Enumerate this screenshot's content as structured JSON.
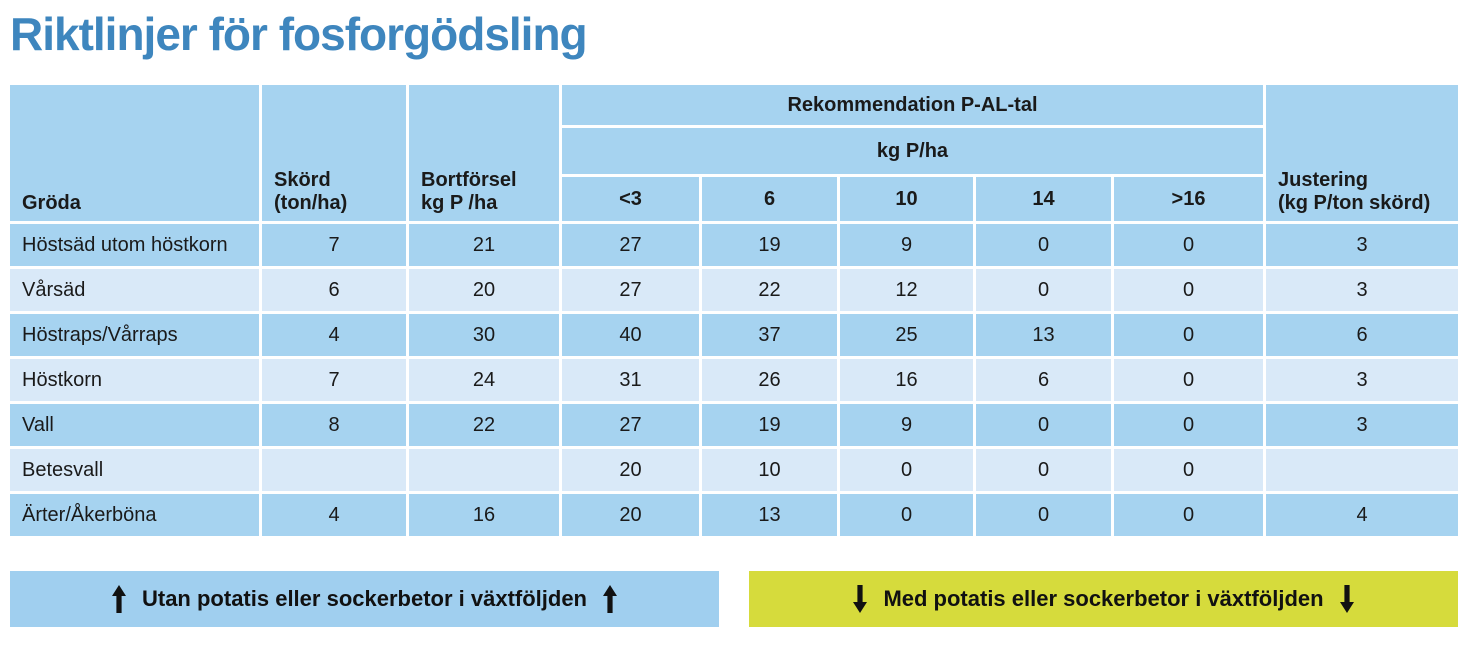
{
  "page": {
    "title": "Riktlinjer för fosforgödsling"
  },
  "colors": {
    "title_blue": "#3e86be",
    "row_dark_blue": "#a6d3f0",
    "row_light_blue": "#d9e9f8",
    "banner_blue": "#a0cfef",
    "banner_yellow": "#d6db3c",
    "text": "#1a1a1a"
  },
  "table": {
    "header": {
      "crop": "Gröda",
      "yield_line1": "Skörd",
      "yield_line2": "(ton/ha)",
      "removal_line1": "Bortförsel",
      "removal_line2": "kg P /ha",
      "group_title": "Rekommendation P-AL-tal",
      "group_subtitle": "kg P/ha",
      "pal_levels": [
        "<3",
        "6",
        "10",
        "14",
        ">16"
      ],
      "adjustment_line1": "Justering",
      "adjustment_line2": "(kg P/ton skörd)"
    },
    "rows": [
      {
        "crop": "Höstsäd utom höstkorn",
        "yield": "7",
        "removal": "21",
        "pal": [
          "27",
          "19",
          "9",
          "0",
          "0"
        ],
        "adjustment": "3"
      },
      {
        "crop": "Vårsäd",
        "yield": "6",
        "removal": "20",
        "pal": [
          "27",
          "22",
          "12",
          "0",
          "0"
        ],
        "adjustment": "3"
      },
      {
        "crop": "Höstraps/Vårraps",
        "yield": "4",
        "removal": "30",
        "pal": [
          "40",
          "37",
          "25",
          "13",
          "0"
        ],
        "adjustment": "6"
      },
      {
        "crop": "Höstkorn",
        "yield": "7",
        "removal": "24",
        "pal": [
          "31",
          "26",
          "16",
          "6",
          "0"
        ],
        "adjustment": "3"
      },
      {
        "crop": "Vall",
        "yield": "8",
        "removal": "22",
        "pal": [
          "27",
          "19",
          "9",
          "0",
          "0"
        ],
        "adjustment": "3"
      },
      {
        "crop": "Betesvall",
        "yield": "",
        "removal": "",
        "pal": [
          "20",
          "10",
          "0",
          "0",
          "0"
        ],
        "adjustment": ""
      },
      {
        "crop": "Ärter/Åkerböna",
        "yield": "4",
        "removal": "16",
        "pal": [
          "20",
          "13",
          "0",
          "0",
          "0"
        ],
        "adjustment": "4"
      }
    ]
  },
  "banners": {
    "without_potatoes": {
      "label": "Utan potatis eller sockerbetor i växtföljden",
      "icon": "up-arrow"
    },
    "with_potatoes": {
      "label": "Med potatis eller sockerbetor i växtföljden",
      "icon": "down-arrow"
    }
  }
}
